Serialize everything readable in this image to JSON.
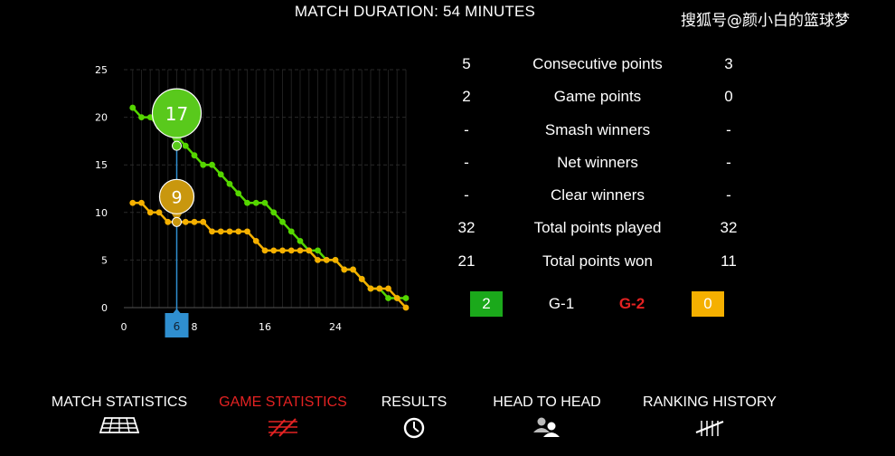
{
  "header": {
    "title": "MATCH DURATION: 54 MINUTES",
    "watermark": "搜狐号@颜小白的篮球梦"
  },
  "chart_data": {
    "type": "line",
    "xlim": [
      0,
      32
    ],
    "ylim": [
      0,
      25
    ],
    "x_ticks": [
      0,
      8,
      16,
      24
    ],
    "y_ticks": [
      0,
      5,
      10,
      15,
      20,
      25
    ],
    "grid": true,
    "series": [
      {
        "color": "#55d600",
        "values": [
          21,
          20,
          20,
          19,
          19,
          18,
          17,
          16,
          15,
          15,
          14,
          13,
          12,
          11,
          11,
          11,
          10,
          9,
          8,
          7,
          6,
          6,
          5,
          5,
          4,
          4,
          3,
          2,
          2,
          1,
          1,
          1
        ]
      },
      {
        "color": "#f5b000",
        "values": [
          11,
          11,
          10,
          10,
          9,
          9,
          9,
          9,
          9,
          8,
          8,
          8,
          8,
          8,
          7,
          6,
          6,
          6,
          6,
          6,
          6,
          5,
          5,
          5,
          4,
          4,
          3,
          2,
          2,
          2,
          1,
          0
        ]
      }
    ],
    "cursor": {
      "x": 6,
      "label": "6"
    },
    "callouts": [
      {
        "x": 6,
        "y": 17,
        "label": "17",
        "color": "#59c91c"
      },
      {
        "x": 6,
        "y": 9,
        "label": "9",
        "color": "#c9970e"
      }
    ]
  },
  "stats": [
    {
      "left": "5",
      "label": "Consecutive points",
      "right": "3"
    },
    {
      "left": "2",
      "label": "Game points",
      "right": "0"
    },
    {
      "left": "-",
      "label": "Smash winners",
      "right": "-"
    },
    {
      "left": "-",
      "label": "Net winners",
      "right": "-"
    },
    {
      "left": "-",
      "label": "Clear winners",
      "right": "-"
    },
    {
      "left": "32",
      "label": "Total points played",
      "right": "32"
    },
    {
      "left": "21",
      "label": "Total points won",
      "right": "11"
    }
  ],
  "game_scores": {
    "left_score": "2",
    "game1_label": "G-1",
    "game2_label": "G-2",
    "right_score": "0",
    "left_color": "#1ba91b",
    "right_color": "#f5b000",
    "active_color": "#e32222"
  },
  "nav": [
    {
      "label": "MATCH STATISTICS",
      "icon": "court-icon",
      "active": false
    },
    {
      "label": "GAME STATISTICS",
      "icon": "game-stats-icon",
      "active": true
    },
    {
      "label": "RESULTS",
      "icon": "clock-icon",
      "active": false
    },
    {
      "label": "HEAD TO HEAD",
      "icon": "people-icon",
      "active": false
    },
    {
      "label": "RANKING HISTORY",
      "icon": "ranking-icon",
      "active": false
    }
  ]
}
